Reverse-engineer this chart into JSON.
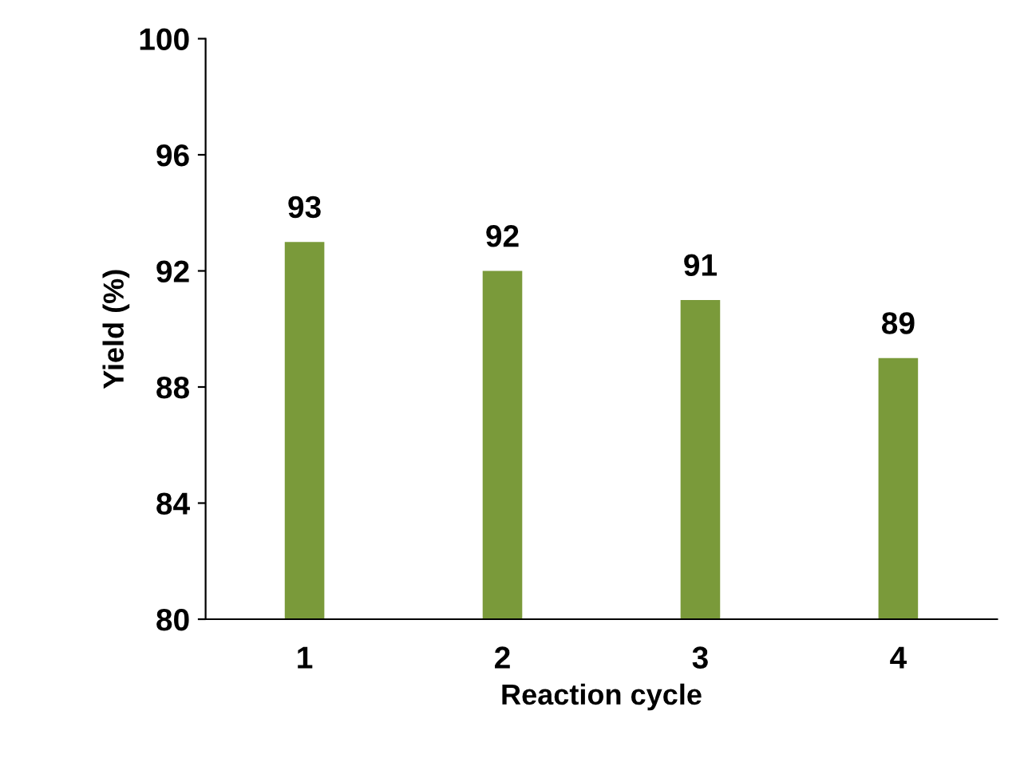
{
  "chart_data": {
    "type": "bar",
    "xlabel": "Reaction cycle",
    "ylabel": "Yield (%)",
    "categories": [
      "1",
      "2",
      "3",
      "4"
    ],
    "values": [
      93,
      92,
      91,
      89
    ],
    "color": "#7a9a3a",
    "ylim": [
      80,
      100
    ],
    "yticks": [
      80,
      84,
      88,
      92,
      96,
      100
    ],
    "grid": false,
    "data_labels": true
  }
}
